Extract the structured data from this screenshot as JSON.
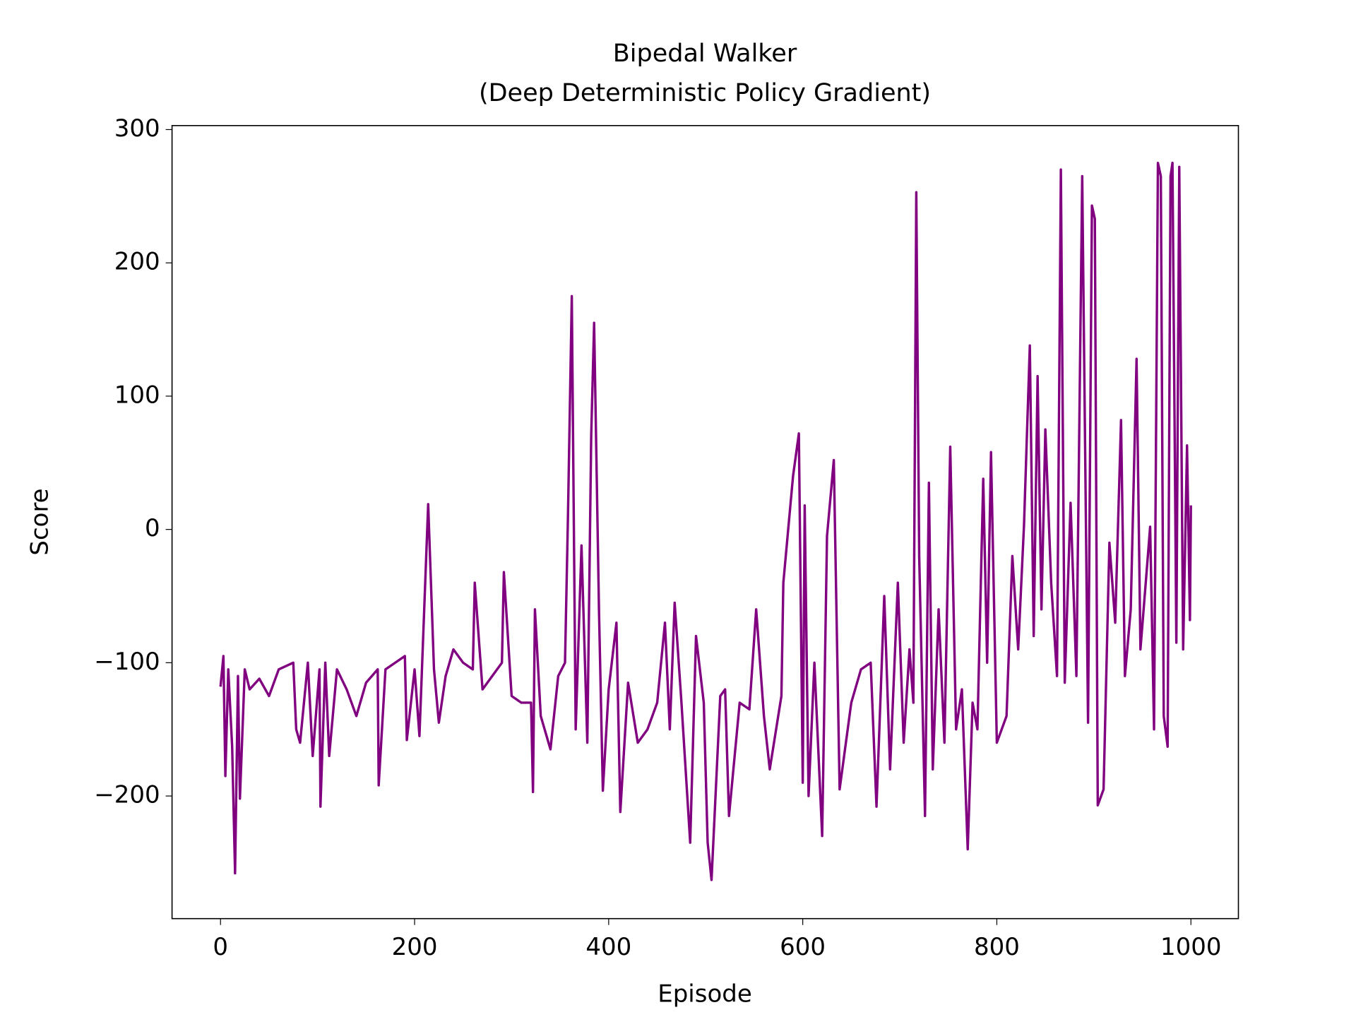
{
  "chart_data": {
    "type": "line",
    "title": "Bipedal Walker\n(Deep Deterministic Policy Gradient)",
    "x_label": "Episode",
    "y_label": "Score",
    "xlim": [
      -49.95,
      1048.95
    ],
    "ylim": [
      -292,
      303
    ],
    "xticks": [
      0,
      200,
      400,
      600,
      800,
      1000
    ],
    "yticks": [
      {
        "value": -200,
        "label": "−200"
      },
      {
        "value": -100,
        "label": "−100"
      },
      0,
      100,
      200,
      300
    ],
    "grid": false,
    "series": [
      {
        "color": "#800080",
        "x": [
          0,
          3,
          5,
          8,
          12,
          15,
          18,
          20,
          25,
          30,
          40,
          50,
          60,
          75,
          78,
          82,
          90,
          95,
          102,
          103,
          108,
          112,
          120,
          130,
          140,
          150,
          162,
          163,
          170,
          180,
          190,
          192,
          200,
          205,
          214,
          220,
          225,
          232,
          240,
          250,
          260,
          262,
          270,
          280,
          290,
          292,
          300,
          310,
          320,
          322,
          324,
          330,
          340,
          348,
          355,
          358,
          362,
          366,
          372,
          378,
          382,
          385,
          390,
          394,
          400,
          408,
          412,
          420,
          430,
          440,
          450,
          458,
          463,
          468,
          475,
          484,
          490,
          498,
          502,
          506,
          515,
          520,
          524,
          535,
          545,
          552,
          560,
          566,
          578,
          580,
          590,
          596,
          600,
          602,
          606,
          612,
          620,
          625,
          632,
          638,
          650,
          660,
          670,
          676,
          684,
          690,
          698,
          704,
          710,
          714,
          717,
          720,
          726,
          730,
          734,
          740,
          746,
          752,
          758,
          764,
          770,
          775,
          780,
          786,
          790,
          794,
          800,
          810,
          816,
          822,
          828,
          834,
          838,
          842,
          846,
          850,
          856,
          862,
          866,
          870,
          876,
          882,
          888,
          894,
          898,
          901,
          904,
          910,
          916,
          922,
          928,
          932,
          938,
          944,
          948,
          954,
          958,
          962,
          966,
          969,
          972,
          976,
          979,
          981,
          985,
          988,
          992,
          996,
          999,
          1000
        ],
        "values": [
          -118,
          -95,
          -185,
          -105,
          -163,
          -258,
          -110,
          -202,
          -105,
          -120,
          -112,
          -125,
          -105,
          -100,
          -150,
          -160,
          -100,
          -170,
          -105,
          -208,
          -100,
          -170,
          -105,
          -120,
          -140,
          -115,
          -105,
          -192,
          -105,
          -100,
          -95,
          -158,
          -105,
          -155,
          19,
          -105,
          -145,
          -110,
          -90,
          -100,
          -105,
          -40,
          -120,
          -110,
          -100,
          -32,
          -125,
          -130,
          -130,
          -197,
          -60,
          -140,
          -165,
          -110,
          -100,
          8,
          175,
          -150,
          -12,
          -160,
          70,
          155,
          -60,
          -196,
          -120,
          -70,
          -212,
          -115,
          -160,
          -150,
          -130,
          -70,
          -150,
          -55,
          -130,
          -235,
          -80,
          -130,
          -235,
          -263,
          -125,
          -120,
          -215,
          -130,
          -135,
          -60,
          -140,
          -180,
          -125,
          -40,
          40,
          72,
          -190,
          18,
          -200,
          -100,
          -230,
          -5,
          52,
          -195,
          -130,
          -105,
          -100,
          -208,
          -50,
          -180,
          -40,
          -160,
          -90,
          -130,
          253,
          -20,
          -215,
          35,
          -180,
          -60,
          -160,
          62,
          -150,
          -120,
          -240,
          -130,
          -150,
          38,
          -100,
          58,
          -160,
          -140,
          -20,
          -90,
          3,
          138,
          -80,
          115,
          -60,
          75,
          -40,
          -110,
          270,
          -115,
          20,
          -110,
          265,
          -145,
          243,
          233,
          -207,
          -195,
          -10,
          -70,
          82,
          -110,
          -60,
          128,
          -90,
          -35,
          2,
          -150,
          275,
          265,
          -140,
          -163,
          265,
          275,
          -85,
          272,
          -90,
          63,
          -68,
          18
        ]
      }
    ]
  }
}
